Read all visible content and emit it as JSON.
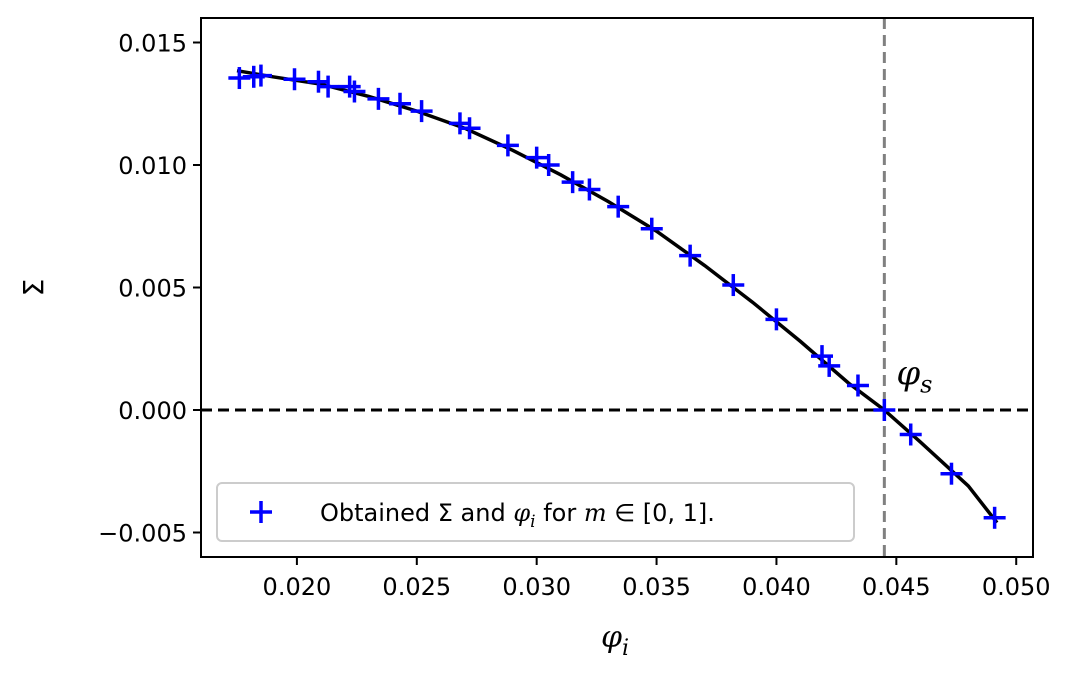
{
  "chart_data": {
    "type": "scatter",
    "xlabel": "φi",
    "xlabel_parts": {
      "base": "φ",
      "sub": "i"
    },
    "ylabel": "Σ",
    "xlim": [
      0.016,
      0.0507
    ],
    "ylim": [
      -0.006,
      0.016
    ],
    "xticks": [
      0.02,
      0.025,
      0.03,
      0.035,
      0.04,
      0.045,
      0.05
    ],
    "xtick_labels": [
      "0.020",
      "0.025",
      "0.030",
      "0.035",
      "0.040",
      "0.045",
      "0.050"
    ],
    "yticks": [
      -0.005,
      0.0,
      0.005,
      0.01,
      0.015
    ],
    "ytick_labels": [
      "−0.005",
      "0.000",
      "0.005",
      "0.010",
      "0.015"
    ],
    "grid": false,
    "legend_placement": "lower-left",
    "series": [
      {
        "name": "Obtained Σ and φi for m ∈ [0, 1].",
        "type": "scatter",
        "marker": "plus",
        "color": "#0000ff",
        "x": [
          0.0176,
          0.0182,
          0.0185,
          0.0199,
          0.0209,
          0.0213,
          0.0222,
          0.0224,
          0.0234,
          0.0243,
          0.0252,
          0.0268,
          0.0272,
          0.0288,
          0.03,
          0.0305,
          0.0315,
          0.0322,
          0.0334,
          0.0348,
          0.0364,
          0.0382,
          0.04,
          0.0419,
          0.0422,
          0.0434,
          0.0445,
          0.0456,
          0.0473,
          0.0491
        ],
        "y": [
          0.01355,
          0.0136,
          0.01365,
          0.0135,
          0.0134,
          0.0132,
          0.0132,
          0.013,
          0.0127,
          0.0125,
          0.0122,
          0.0117,
          0.0115,
          0.0108,
          0.0103,
          0.01,
          0.0093,
          0.009,
          0.0083,
          0.0074,
          0.0063,
          0.0051,
          0.0037,
          0.0022,
          0.0018,
          0.001,
          0.0,
          -0.001,
          -0.0026,
          -0.0044
        ]
      },
      {
        "type": "line",
        "color": "#000000",
        "x": [
          0.0175,
          0.019,
          0.021,
          0.023,
          0.025,
          0.027,
          0.029,
          0.031,
          0.033,
          0.035,
          0.037,
          0.039,
          0.041,
          0.043,
          0.0445,
          0.046,
          0.048,
          0.0492
        ],
        "y": [
          0.01385,
          0.0136,
          0.0133,
          0.0128,
          0.0122,
          0.0115,
          0.0106,
          0.0096,
          0.0085,
          0.0073,
          0.0059,
          0.0044,
          0.0028,
          0.0011,
          0.0,
          -0.0013,
          -0.0031,
          -0.0046
        ]
      }
    ],
    "hlines": [
      {
        "y": 0.0,
        "style": "dashed",
        "color": "#000000"
      }
    ],
    "vlines": [
      {
        "x": 0.0445,
        "style": "dashed",
        "color": "#808080"
      }
    ],
    "annotations": [
      {
        "text": "φs",
        "base": "φ",
        "sub": "s",
        "x": 0.045,
        "y": 0.0012
      }
    ],
    "legend": {
      "marker_color": "#0000ff",
      "label_parts": {
        "prefix": "Obtained Σ and ",
        "phi": "φ",
        "phi_sub": "i",
        "middle": " for ",
        "m": "m",
        "rest": " ∈ [0, 1]."
      }
    }
  }
}
